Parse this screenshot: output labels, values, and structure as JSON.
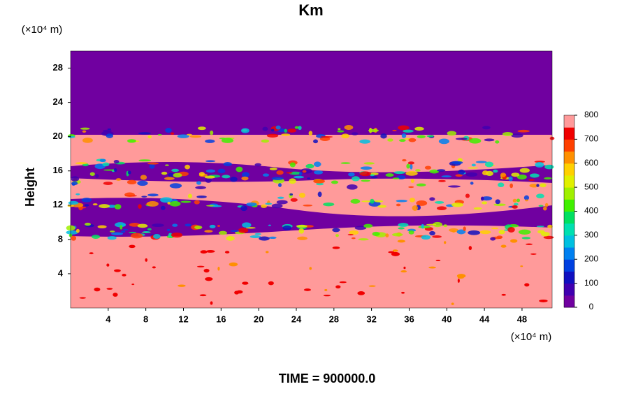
{
  "chart_data": {
    "type": "contour",
    "title": "Km",
    "ylabel": "Height",
    "x_unit": "(×10⁴ m)",
    "y_unit": "(×10⁴ m)",
    "annotation": "TIME = 900000.0",
    "xlim": [
      0,
      51.2
    ],
    "xticks": [
      4,
      8,
      12,
      16,
      20,
      24,
      28,
      32,
      36,
      40,
      44,
      48
    ],
    "ylim": [
      0,
      30
    ],
    "yticks": [
      4,
      8,
      12,
      16,
      20,
      24,
      28
    ],
    "clim": [
      0,
      800
    ],
    "cticks": [
      0,
      100,
      200,
      300,
      400,
      500,
      600,
      700,
      800
    ],
    "colorbar_colors": [
      "#7000a0",
      "#4000b0",
      "#1010c0",
      "#0040e0",
      "#0080f0",
      "#00c0e0",
      "#00e0b0",
      "#00e060",
      "#40f000",
      "#a0f000",
      "#e0f000",
      "#ffd000",
      "#ff9000",
      "#ff4000",
      "#f00000",
      "#ff9a9a"
    ]
  }
}
